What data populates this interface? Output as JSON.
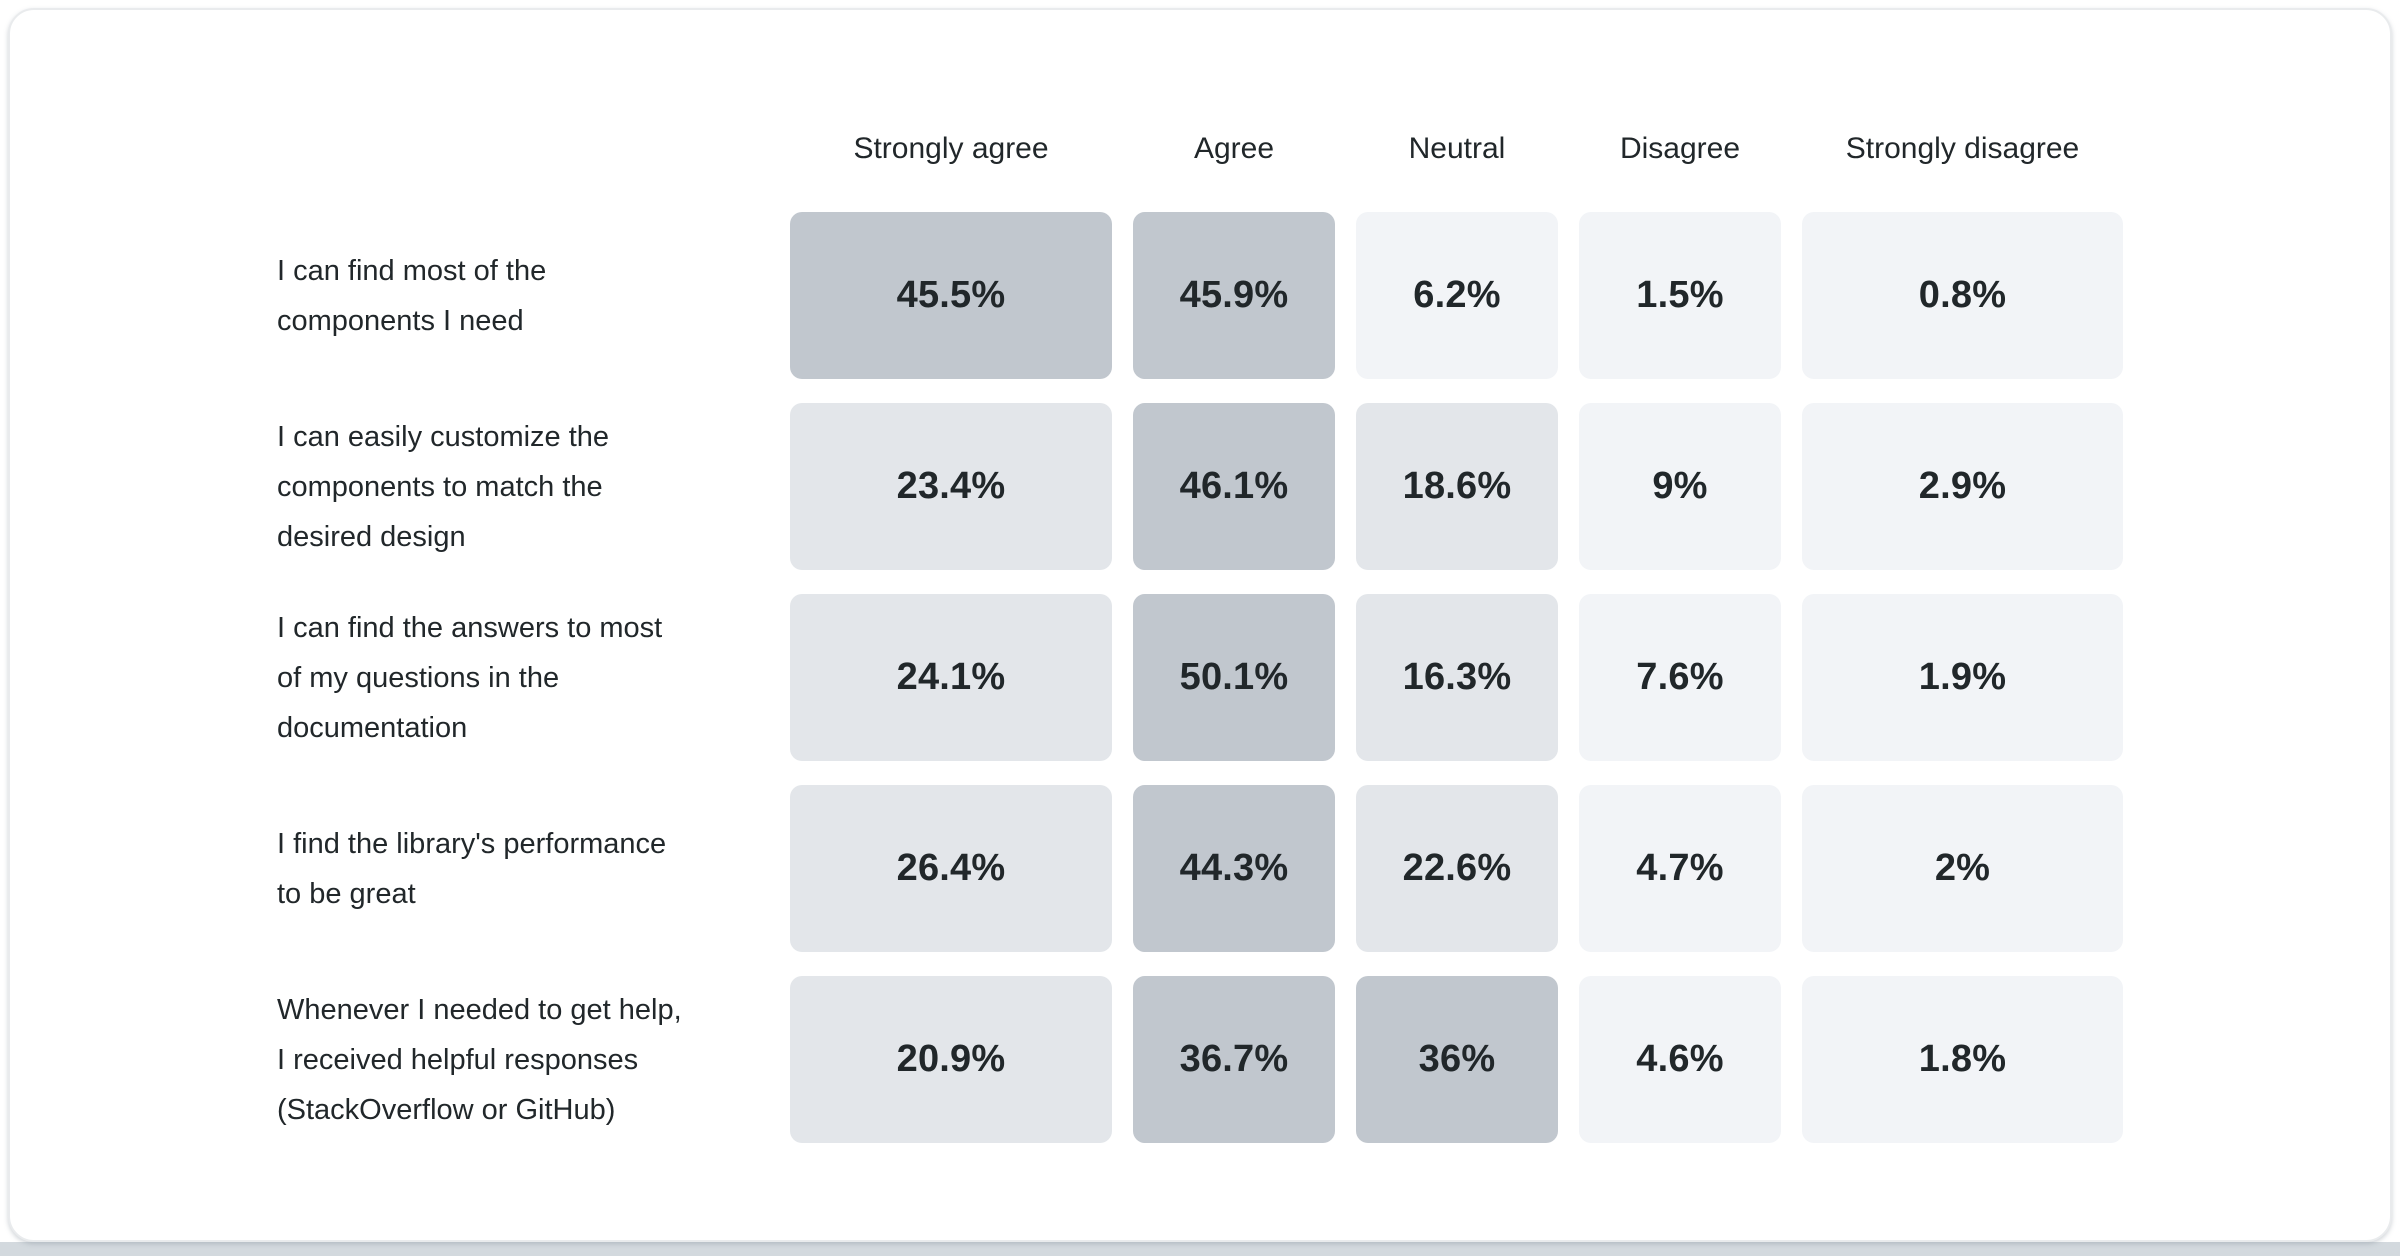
{
  "chart_data": {
    "type": "heatmap",
    "title": "",
    "columns": [
      "Strongly agree",
      "Agree",
      "Neutral",
      "Disagree",
      "Strongly disagree"
    ],
    "rows": [
      {
        "label": "I can find most of the components I need",
        "label_lines": [
          "I can find most of the",
          "components I need"
        ],
        "value_labels": [
          "45.5%",
          "45.9%",
          "6.2%",
          "1.5%",
          "0.8%"
        ],
        "values_percent": [
          45.5,
          45.9,
          6.2,
          1.5,
          0.8
        ]
      },
      {
        "label": "I can easily customize the components to match the desired design",
        "label_lines": [
          "I can easily customize the",
          "components to match the",
          "desired design"
        ],
        "value_labels": [
          "23.4%",
          "46.1%",
          "18.6%",
          "9%",
          "2.9%"
        ],
        "values_percent": [
          23.4,
          46.1,
          18.6,
          9,
          2.9
        ]
      },
      {
        "label": "I can find the answers to most of my questions in the documentation",
        "label_lines": [
          "I can find the answers to most",
          "of my questions in the",
          "documentation"
        ],
        "value_labels": [
          "24.1%",
          "50.1%",
          "16.3%",
          "7.6%",
          "1.9%"
        ],
        "values_percent": [
          24.1,
          50.1,
          16.3,
          7.6,
          1.9
        ]
      },
      {
        "label": "I find the library's performance to be great",
        "label_lines": [
          "I find the library's performance",
          "to be great"
        ],
        "value_labels": [
          "26.4%",
          "44.3%",
          "22.6%",
          "4.7%",
          "2%"
        ],
        "values_percent": [
          26.4,
          44.3,
          22.6,
          4.7,
          2
        ]
      },
      {
        "label": "Whenever I needed to get help, I received helpful responses (StackOverflow or GitHub)",
        "label_lines": [
          "Whenever I needed to get help,",
          "I received helpful responses",
          "(StackOverflow or GitHub)"
        ],
        "value_labels": [
          "20.9%",
          "36.7%",
          "36%",
          "4.6%",
          "1.8%"
        ],
        "values_percent": [
          20.9,
          36.7,
          36,
          4.6,
          1.8
        ]
      }
    ],
    "color_scale": {
      "low": "#f2f4f7",
      "mid": "#e3e6ea",
      "high": "#c1c7ce",
      "thresholds": [
        10,
        30
      ]
    },
    "text_color": "#21272a",
    "legend_position": "none",
    "grid": false
  }
}
